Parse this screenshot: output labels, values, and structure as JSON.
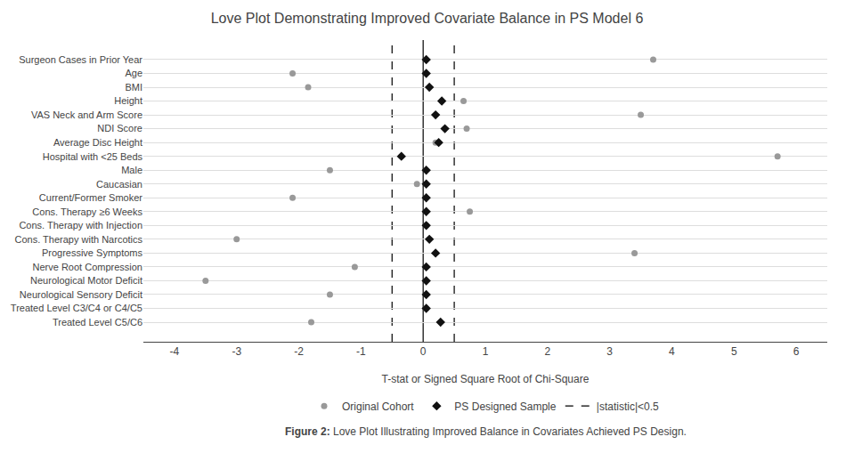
{
  "chart_data": {
    "type": "scatter",
    "orientation": "horizontal",
    "title": "Love Plot Demonstrating Improved Covariate Balance in PS Model 6",
    "xlabel": "T-stat or Signed Square Root of Chi-Square",
    "caption": {
      "bold": "Figure 2:",
      "text": "Love Plot Illustrating Improved Balance in Covariates Achieved PS Design."
    },
    "categories": [
      "Surgeon Cases in Prior Year",
      "Age",
      "BMI",
      "Height",
      "VAS Neck and Arm Score",
      "NDI Score",
      "Average Disc Height",
      "Hospital with <25 Beds",
      "Male",
      "Caucasian",
      "Current/Former Smoker",
      "Cons. Therapy ≥6 Weeks",
      "Cons. Therapy with Injection",
      "Cons. Therapy with Narcotics",
      "Progressive Symptoms",
      "Nerve Root Compression",
      "Neurological Motor Deficit",
      "Neurological Sensory Deficit",
      "Treated Level C3/C4 or C4/C5",
      "Treated Level C5/C6"
    ],
    "series": [
      {
        "name": "Original Cohort",
        "color": "#999999",
        "marker": "circle",
        "values": [
          3.7,
          -2.1,
          -1.85,
          0.65,
          3.5,
          0.7,
          0.2,
          5.7,
          -1.5,
          -0.1,
          -2.1,
          0.75,
          0.05,
          -3.0,
          3.4,
          -1.1,
          -3.5,
          -1.5,
          0.05,
          -1.8
        ]
      },
      {
        "name": "PS Designed Sample",
        "color": "#111111",
        "marker": "diamond",
        "values": [
          0.05,
          0.05,
          0.1,
          0.3,
          0.2,
          0.35,
          0.25,
          -0.35,
          0.05,
          0.05,
          0.05,
          0.05,
          0.05,
          0.1,
          0.2,
          0.05,
          0.05,
          0.05,
          0.05,
          0.28
        ]
      }
    ],
    "reference_lines": [
      {
        "name": "|statistic|<0.5",
        "x": [
          -0.5,
          0.5
        ],
        "line_style": "dash",
        "color": "#000000"
      },
      {
        "x": [
          0
        ],
        "line_style": "solid",
        "color": "#000000"
      }
    ],
    "xlim": [
      -4.5,
      6.5
    ],
    "xticks": [
      -4,
      -3,
      -2,
      -1,
      0,
      1,
      2,
      3,
      4,
      5,
      6
    ],
    "grid": "y",
    "legend": "bottom"
  }
}
